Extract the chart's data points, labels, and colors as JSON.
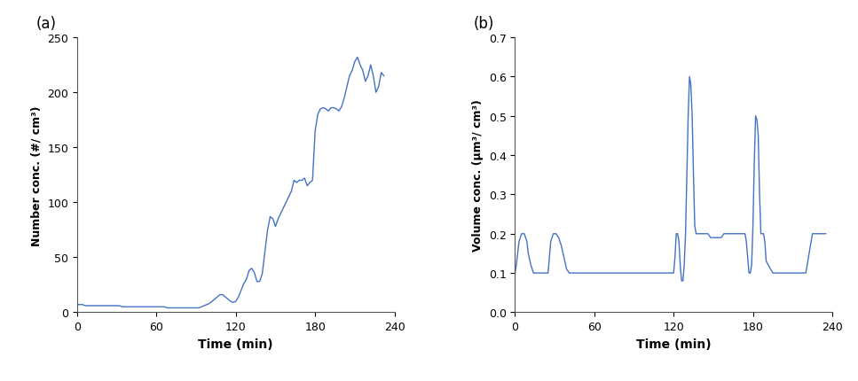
{
  "line_color": "#4472C4",
  "line_width": 1.0,
  "background_color": "#ffffff",
  "label_a": "(a)",
  "label_b": "(b)",
  "xlabel": "Time (min)",
  "ylabel_a": "Number conc. (#/ cm³)",
  "ylabel_b": "Volume conc. (μm³/ cm³)",
  "xlim": [
    0,
    240
  ],
  "xticks": [
    0,
    60,
    120,
    180,
    240
  ],
  "ylim_a": [
    0,
    250
  ],
  "yticks_a": [
    0,
    50,
    100,
    150,
    200,
    250
  ],
  "ylim_b": [
    0,
    0.7
  ],
  "yticks_b": [
    0,
    0.1,
    0.2,
    0.3,
    0.4,
    0.5,
    0.6,
    0.7
  ],
  "time_a": [
    0,
    2,
    4,
    6,
    8,
    10,
    12,
    14,
    16,
    18,
    20,
    22,
    24,
    26,
    28,
    30,
    32,
    34,
    36,
    38,
    40,
    42,
    44,
    46,
    48,
    50,
    52,
    54,
    56,
    58,
    60,
    62,
    64,
    66,
    68,
    70,
    72,
    74,
    76,
    78,
    80,
    82,
    84,
    86,
    88,
    90,
    92,
    94,
    96,
    98,
    100,
    102,
    104,
    106,
    108,
    110,
    112,
    114,
    116,
    118,
    120,
    122,
    124,
    126,
    128,
    130,
    132,
    134,
    136,
    138,
    140,
    142,
    144,
    146,
    148,
    150,
    152,
    154,
    156,
    158,
    160,
    162,
    164,
    166,
    168,
    170,
    172,
    174,
    176,
    178,
    180,
    182,
    184,
    186,
    188,
    190,
    192,
    194,
    196,
    198,
    200,
    202,
    204,
    206,
    208,
    210,
    212,
    214,
    216,
    218,
    220,
    222,
    224,
    226,
    228,
    230,
    232
  ],
  "conc_a": [
    7,
    7,
    7,
    6,
    6,
    6,
    6,
    6,
    6,
    6,
    6,
    6,
    6,
    6,
    6,
    6,
    6,
    5,
    5,
    5,
    5,
    5,
    5,
    5,
    5,
    5,
    5,
    5,
    5,
    5,
    5,
    5,
    5,
    5,
    4,
    4,
    4,
    4,
    4,
    4,
    4,
    4,
    4,
    4,
    4,
    4,
    4,
    5,
    6,
    7,
    8,
    10,
    12,
    14,
    16,
    16,
    14,
    12,
    10,
    9,
    10,
    14,
    20,
    26,
    30,
    38,
    40,
    36,
    28,
    28,
    35,
    55,
    75,
    87,
    85,
    78,
    85,
    90,
    95,
    100,
    105,
    110,
    120,
    118,
    120,
    120,
    122,
    115,
    118,
    120,
    165,
    180,
    185,
    186,
    185,
    183,
    186,
    186,
    185,
    183,
    187,
    195,
    205,
    215,
    220,
    228,
    232,
    225,
    220,
    210,
    215,
    225,
    215,
    200,
    205,
    218,
    215
  ],
  "time_b": [
    0,
    1,
    3,
    5,
    7,
    9,
    10,
    12,
    14,
    16,
    18,
    20,
    22,
    24,
    25,
    27,
    29,
    31,
    33,
    35,
    37,
    39,
    41,
    43,
    45,
    47,
    49,
    51,
    53,
    55,
    57,
    59,
    61,
    63,
    65,
    67,
    69,
    71,
    73,
    75,
    77,
    79,
    81,
    83,
    85,
    87,
    89,
    91,
    93,
    95,
    97,
    99,
    101,
    103,
    105,
    107,
    109,
    111,
    113,
    115,
    117,
    119,
    120,
    121,
    122,
    123,
    124,
    125,
    126,
    127,
    128,
    129,
    130,
    131,
    132,
    133,
    134,
    135,
    136,
    137,
    138,
    139,
    140,
    141,
    142,
    143,
    144,
    145,
    146,
    147,
    148,
    149,
    150,
    151,
    152,
    153,
    154,
    155,
    156,
    157,
    158,
    159,
    160,
    161,
    162,
    163,
    164,
    165,
    166,
    167,
    168,
    169,
    170,
    171,
    172,
    173,
    174,
    175,
    176,
    177,
    178,
    179,
    180,
    181,
    182,
    183,
    184,
    185,
    186,
    187,
    188,
    189,
    190,
    195,
    200,
    205,
    210,
    215,
    220,
    225,
    230,
    235
  ],
  "conc_b": [
    0.1,
    0.12,
    0.18,
    0.2,
    0.2,
    0.18,
    0.15,
    0.12,
    0.1,
    0.1,
    0.1,
    0.1,
    0.1,
    0.1,
    0.1,
    0.18,
    0.2,
    0.2,
    0.19,
    0.17,
    0.14,
    0.11,
    0.1,
    0.1,
    0.1,
    0.1,
    0.1,
    0.1,
    0.1,
    0.1,
    0.1,
    0.1,
    0.1,
    0.1,
    0.1,
    0.1,
    0.1,
    0.1,
    0.1,
    0.1,
    0.1,
    0.1,
    0.1,
    0.1,
    0.1,
    0.1,
    0.1,
    0.1,
    0.1,
    0.1,
    0.1,
    0.1,
    0.1,
    0.1,
    0.1,
    0.1,
    0.1,
    0.1,
    0.1,
    0.1,
    0.1,
    0.1,
    0.1,
    0.14,
    0.2,
    0.2,
    0.18,
    0.12,
    0.08,
    0.08,
    0.12,
    0.2,
    0.35,
    0.5,
    0.6,
    0.58,
    0.5,
    0.35,
    0.22,
    0.2,
    0.2,
    0.2,
    0.2,
    0.2,
    0.2,
    0.2,
    0.2,
    0.2,
    0.2,
    0.195,
    0.19,
    0.19,
    0.19,
    0.19,
    0.19,
    0.19,
    0.19,
    0.19,
    0.19,
    0.195,
    0.2,
    0.2,
    0.2,
    0.2,
    0.2,
    0.2,
    0.2,
    0.2,
    0.2,
    0.2,
    0.2,
    0.2,
    0.2,
    0.2,
    0.2,
    0.2,
    0.2,
    0.18,
    0.14,
    0.1,
    0.1,
    0.12,
    0.22,
    0.38,
    0.5,
    0.49,
    0.45,
    0.3,
    0.2,
    0.2,
    0.2,
    0.18,
    0.13,
    0.1,
    0.1,
    0.1,
    0.1,
    0.1,
    0.1,
    0.2,
    0.2,
    0.2
  ]
}
